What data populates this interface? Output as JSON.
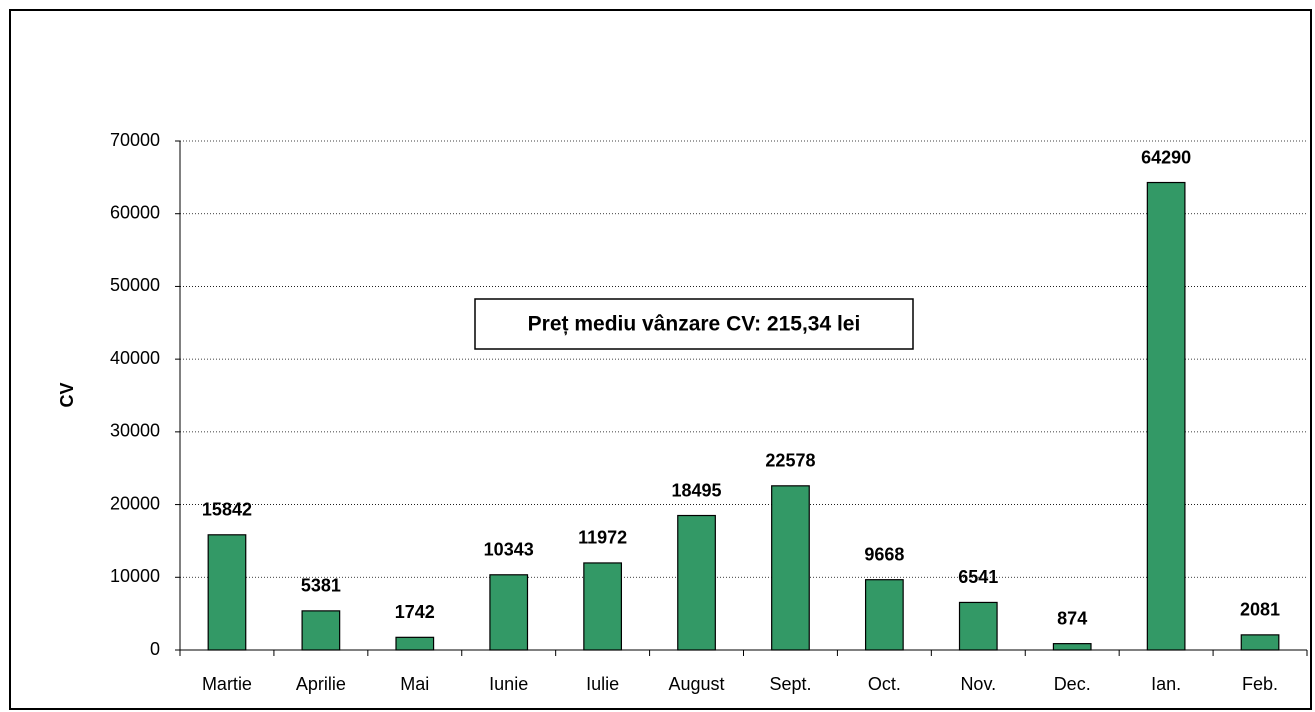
{
  "chart_data": {
    "type": "bar",
    "y_label": "CV",
    "annotation": "Preț mediu vânzare CV: 215,34 lei",
    "categories": [
      "Martie",
      "Aprilie",
      "Mai",
      "Iunie",
      "Iulie",
      "August",
      "Sept.",
      "Oct.",
      "Nov.",
      "Dec.",
      "Ian.",
      "Feb."
    ],
    "values": [
      15842,
      5381,
      1742,
      10343,
      11972,
      18495,
      22578,
      9668,
      6541,
      874,
      64290,
      2081
    ],
    "color": "#339966",
    "ylim": [
      0,
      70000
    ],
    "yticks": [
      0,
      10000,
      20000,
      30000,
      40000,
      50000,
      60000,
      70000
    ],
    "grid": true
  }
}
